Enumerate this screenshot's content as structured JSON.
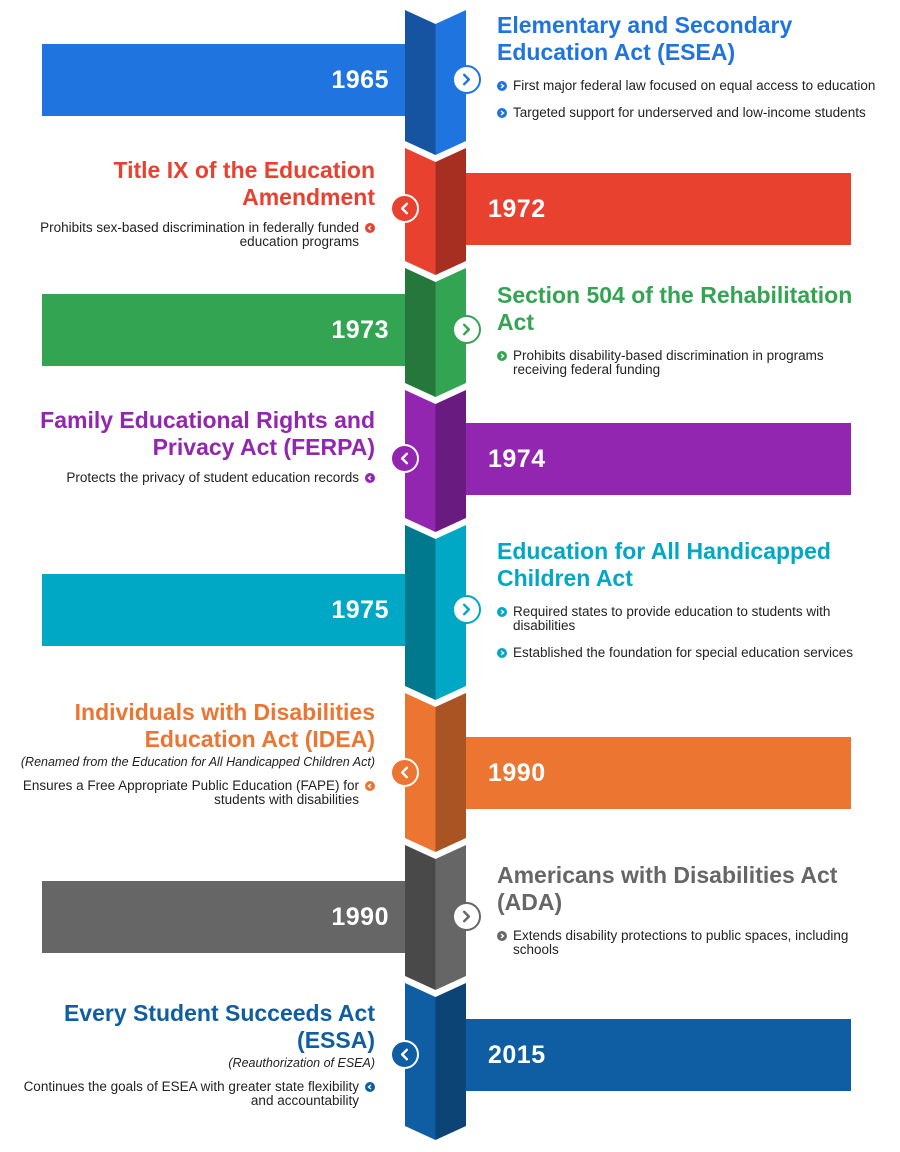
{
  "colors": {
    "blue": "#1f74e0",
    "red": "#e8412f",
    "green": "#33a552",
    "purple": "#9326b0",
    "teal": "#00a8c6",
    "orange": "#ec7532",
    "gray": "#666666",
    "navy": "#0f5ea3"
  },
  "events": [
    {
      "year": "1965",
      "side": "left",
      "color": "#1f74e0",
      "title": "Elementary and Secondary Education Act (ESEA)",
      "bullets": [
        "First major federal law focused on equal access to education",
        "Targeted support for underserved and low-income students"
      ]
    },
    {
      "year": "1972",
      "side": "right",
      "color": "#e8412f",
      "title": "Title IX of the Education Amendment",
      "bullets": [
        "Prohibits sex-based discrimination in federally funded education programs"
      ]
    },
    {
      "year": "1973",
      "side": "left",
      "color": "#33a552",
      "title": "Section 504 of the Rehabilitation Act",
      "bullets": [
        "Prohibits disability-based discrimination in programs receiving federal funding"
      ]
    },
    {
      "year": "1974",
      "side": "right",
      "color": "#9326b0",
      "title": "Family Educational Rights and Privacy Act (FERPA)",
      "bullets": [
        "Protects the privacy of student education records"
      ]
    },
    {
      "year": "1975",
      "side": "left",
      "color": "#00a8c6",
      "title": "Education for All Handicapped Children Act",
      "bullets": [
        "Required states to provide education to students with disabilities",
        "Established the foundation for special education services"
      ]
    },
    {
      "year": "1990",
      "side": "right",
      "color": "#ec7532",
      "title": "Individuals with Disabilities Education Act (IDEA)",
      "subtitle": "(Renamed from the Education for All Handicapped Children Act)",
      "bullets": [
        "Ensures a Free Appropriate Public Education (FAPE) for students with disabilities"
      ]
    },
    {
      "year": "1990",
      "side": "left",
      "color": "#666666",
      "title": "Americans with Disabilities Act (ADA)",
      "bullets": [
        "Extends disability protections to public spaces, including schools"
      ]
    },
    {
      "year": "2015",
      "side": "right",
      "color": "#0f5ea3",
      "title": "Every Student Succeeds Act (ESSA)",
      "subtitle": "(Reauthorization of ESEA)",
      "bullets": [
        "Continues the goals of ESEA with greater state flexibility and accountability"
      ]
    }
  ]
}
